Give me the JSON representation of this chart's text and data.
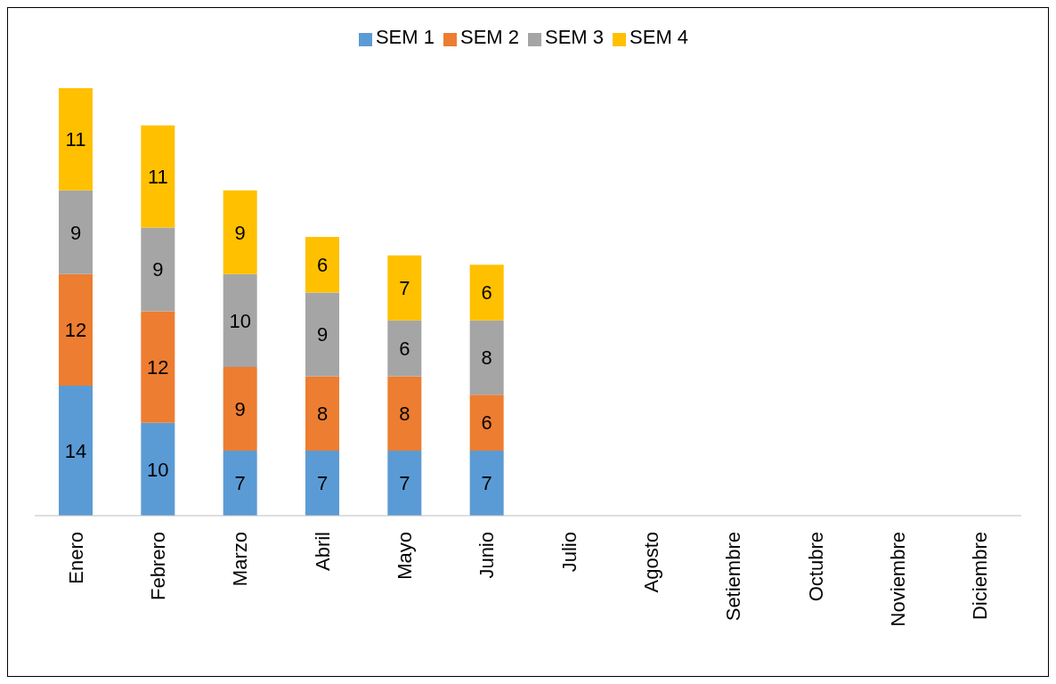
{
  "chart_data": {
    "type": "bar",
    "stacked": true,
    "data_labels": true,
    "legend": "top",
    "tick_labels": "x",
    "categories": [
      "Enero",
      "Febrero",
      "Marzo",
      "Abril",
      "Mayo",
      "Junio",
      "Julio",
      "Agosto",
      "Setiembre",
      "Octubre",
      "Noviembre",
      "Diciembre"
    ],
    "series": [
      {
        "name": "SEM 1",
        "color": "#5b9bd5",
        "values": [
          14,
          10,
          7,
          7,
          7,
          7,
          null,
          null,
          null,
          null,
          null,
          null
        ]
      },
      {
        "name": "SEM 2",
        "color": "#ed7d31",
        "values": [
          12,
          12,
          9,
          8,
          8,
          6,
          null,
          null,
          null,
          null,
          null,
          null
        ]
      },
      {
        "name": "SEM 3",
        "color": "#a5a5a5",
        "values": [
          9,
          9,
          10,
          9,
          6,
          8,
          null,
          null,
          null,
          null,
          null,
          null
        ]
      },
      {
        "name": "SEM 4",
        "color": "#ffc000",
        "values": [
          11,
          11,
          9,
          6,
          7,
          6,
          null,
          null,
          null,
          null,
          null,
          null
        ]
      }
    ]
  }
}
